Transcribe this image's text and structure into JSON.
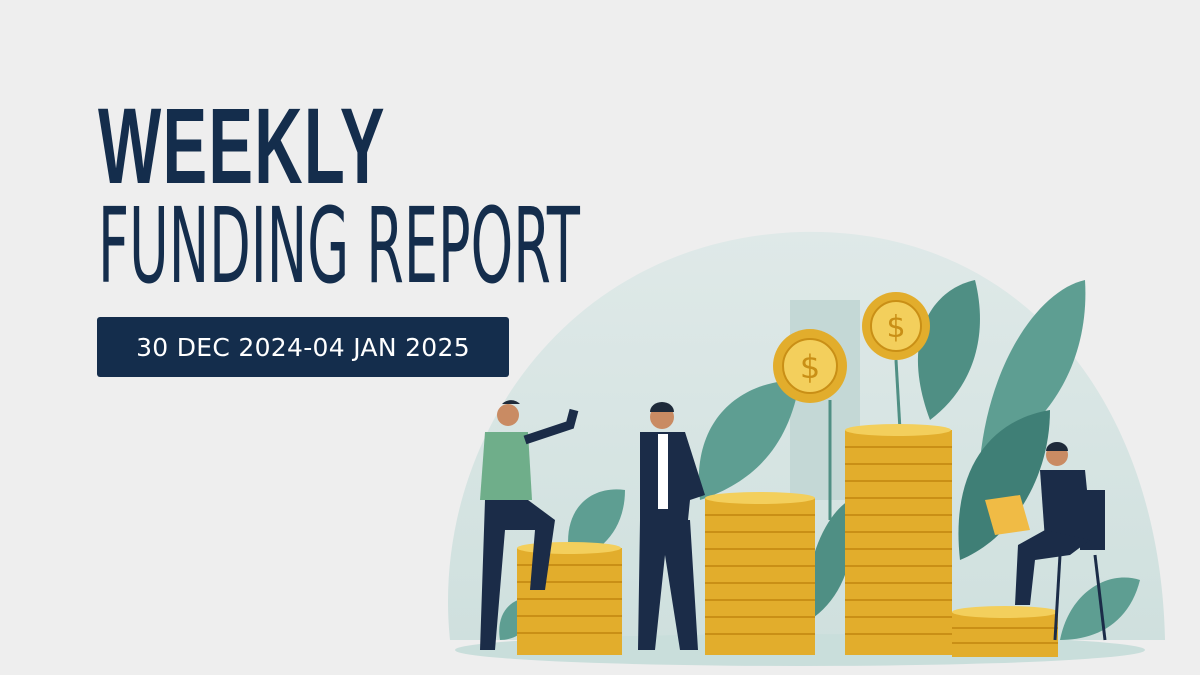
{
  "header": {
    "title_line1": "WEEKLY",
    "title_line2": "FUNDING REPORT",
    "date_range": "30 DEC 2024-04 JAN 2025"
  },
  "colors": {
    "background": "#eeeeee",
    "navy": "#142d4c",
    "teal": "#5a9e90",
    "gold": "#e9b93a"
  },
  "illustration": {
    "icons": [
      "dollar-coin-icon",
      "coin-stack",
      "leaf",
      "businessman"
    ]
  }
}
